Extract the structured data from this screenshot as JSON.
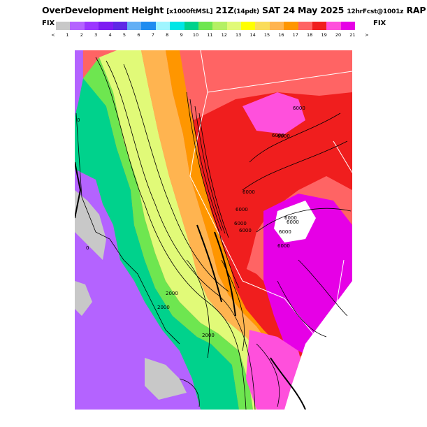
{
  "header": {
    "title_main": "OverDevelopment Height",
    "title_units": "[x1000ftMSL]",
    "title_time": "21Z",
    "title_pdt": "(14pdt)",
    "title_date": "SAT 24 May 2025",
    "title_fcst": "12hrFcst@1001z",
    "title_model": "RAP",
    "fix_left": "FIX",
    "fix_right": "FIX"
  },
  "scale": {
    "colors": [
      "#c8c8c8",
      "#b463ff",
      "#9b36ff",
      "#7e1cf2",
      "#5e28e6",
      "#63aff5",
      "#1e8cf0",
      "#a0f5ff",
      "#00e6e6",
      "#00d28c",
      "#6ee650",
      "#b4f064",
      "#e1fa78",
      "#ffff00",
      "#fadc5a",
      "#ffb450",
      "#ff9600",
      "#ff6464",
      "#f01e1e",
      "#ff50dc",
      "#e600e6"
    ],
    "tick_labels": [
      "<",
      "1",
      "2",
      "3",
      "4",
      "5",
      "6",
      "7",
      "8",
      "9",
      "10",
      "11",
      "12",
      "13",
      "14",
      "15",
      "16",
      "17",
      "18",
      "19",
      "20",
      "21",
      ">"
    ]
  },
  "map": {
    "contour_labels": [
      "0",
      "0",
      "6000",
      "6000",
      "6000",
      "6000",
      "6000",
      "6000",
      "6000",
      "6000",
      "6000",
      "6000",
      "6000",
      "2000",
      "2000",
      "2000"
    ]
  }
}
